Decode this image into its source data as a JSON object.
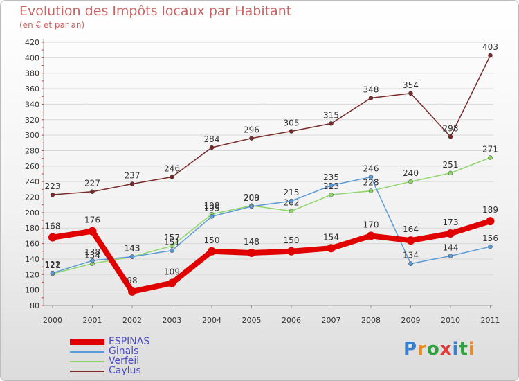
{
  "header": {
    "title": "Evolution des Impôts locaux par Habitant",
    "subtitle": "(en € et par an)"
  },
  "brand": {
    "text": "Proxiti",
    "letter_colors": [
      "#3a7fd0",
      "#f08a1a",
      "#2f9e3f",
      "#e23a3a",
      "#3a7fd0",
      "#2f9e3f",
      "#f08a1a"
    ]
  },
  "chart_data": {
    "type": "line",
    "title": "Evolution des Impôts locaux par Habitant",
    "subtitle": "(en € et par an)",
    "xlabel": "",
    "ylabel": "",
    "ylim": [
      80,
      420
    ],
    "yticks": [
      80,
      100,
      120,
      140,
      160,
      180,
      200,
      220,
      240,
      260,
      280,
      300,
      320,
      340,
      360,
      380,
      400,
      420
    ],
    "grid": true,
    "legend_position": "bottom-left",
    "categories": [
      "2000",
      "2001",
      "2002",
      "2003",
      "2004",
      "2005",
      "2006",
      "2007",
      "2008",
      "2009",
      "2010",
      "2011"
    ],
    "series": [
      {
        "name": "Caylus",
        "color": "#7a2a2a",
        "values": [
          223,
          227,
          237,
          246,
          284,
          296,
          305,
          315,
          348,
          354,
          298,
          403
        ]
      },
      {
        "name": "Verfeil",
        "color": "#8fd66a",
        "values": [
          121,
          134,
          143,
          157,
          198,
          209,
          202,
          223,
          228,
          240,
          251,
          271
        ]
      },
      {
        "name": "Ginals",
        "color": "#5b9bd5",
        "values": [
          122,
          138,
          143,
          151,
          195,
          208,
          215,
          235,
          246,
          134,
          144,
          156
        ]
      },
      {
        "name": "ESPINAS",
        "color": "#e10000",
        "values": [
          168,
          176,
          98,
          109,
          150,
          148,
          150,
          154,
          170,
          164,
          173,
          189
        ]
      }
    ],
    "legend": [
      "ESPINAS",
      "Ginals",
      "Verfeil",
      "Caylus"
    ]
  }
}
